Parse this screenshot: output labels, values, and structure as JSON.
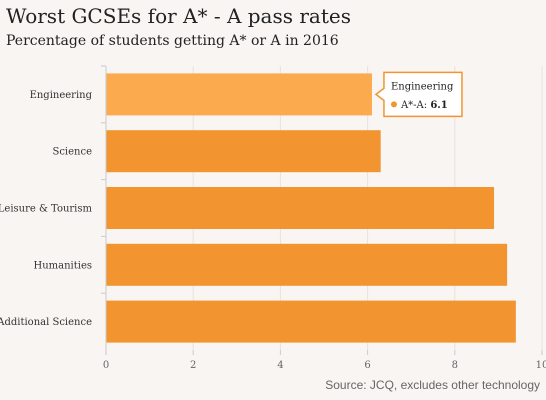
{
  "header": {
    "title": "Worst GCSEs for A* - A pass rates",
    "subtitle": "Percentage of students getting A* or A in 2016"
  },
  "footer": {
    "source": "Source: JCQ, excludes other technology"
  },
  "tooltip": {
    "category": "Engineering",
    "series_label": "A*-A:",
    "value": "6.1"
  },
  "colors": {
    "bar": "#f29530",
    "bar_highlight": "#fbab4d",
    "tooltip_border": "#f29530",
    "axis": "#cccccc",
    "grid": "#e8e2dc"
  },
  "chart_data": {
    "type": "bar",
    "orientation": "horizontal",
    "categories": [
      "Engineering",
      "Science",
      "Leisure & Tourism",
      "Humanities",
      "Additional Science"
    ],
    "series": [
      {
        "name": "A*-A",
        "values": [
          6.1,
          6.3,
          8.9,
          9.2,
          9.4
        ]
      }
    ],
    "xlim": [
      0,
      10
    ],
    "xticks": [
      0,
      2,
      4,
      6,
      8,
      10
    ],
    "title": "Worst GCSEs for A* - A pass rates",
    "xlabel": "",
    "ylabel": "",
    "grid": true,
    "legend": "none"
  }
}
